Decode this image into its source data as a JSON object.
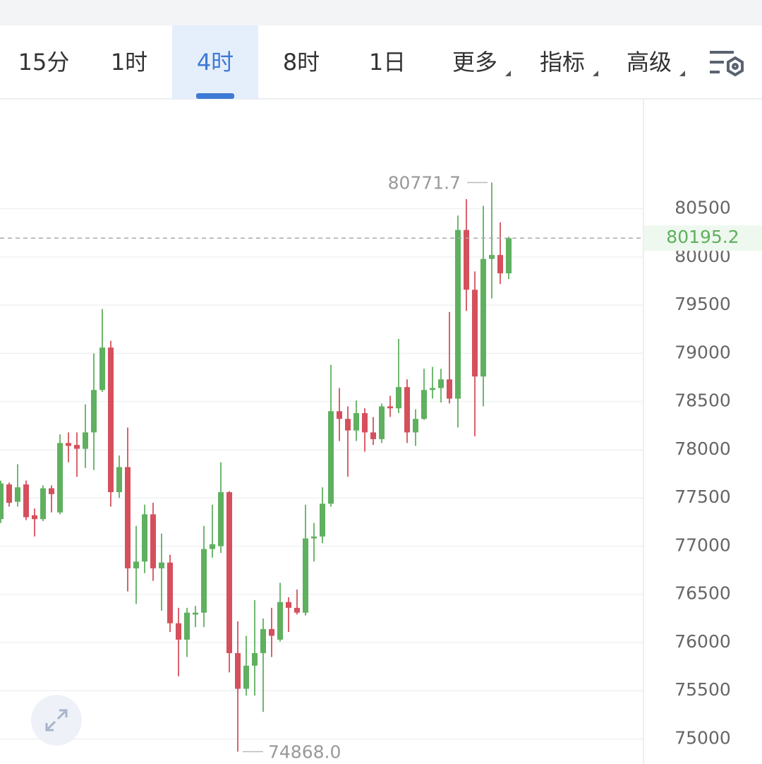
{
  "toolbar": {
    "tabs": [
      {
        "label": "15分"
      },
      {
        "label": "1时"
      },
      {
        "label": "4时",
        "active": true
      },
      {
        "label": "8时"
      },
      {
        "label": "1日"
      },
      {
        "label": "更多",
        "dropdown": true
      },
      {
        "label": "指标",
        "dropdown": true
      },
      {
        "label": "高级",
        "dropdown": true
      }
    ]
  },
  "chart_data": {
    "type": "candlestick",
    "up_color": "#5fb05f",
    "down_color": "#d5505c",
    "ylim": [
      74740,
      81640
    ],
    "yticks": [
      75000,
      75500,
      76000,
      76500,
      77000,
      77500,
      78000,
      78500,
      79000,
      79500,
      80000,
      80500
    ],
    "grid": true,
    "last_price": 80195.2,
    "high_label": 80771.7,
    "low_label": {
      "value": 74868,
      "label": "74868.0"
    },
    "open": [
      77280,
      77640,
      77460,
      77640,
      77320,
      77280,
      77600,
      77350,
      78070,
      78050,
      78010,
      78180,
      78620,
      79060,
      77560,
      77820,
      76770,
      76840,
      77330,
      76770,
      76830,
      76200,
      76030,
      76290,
      76310,
      76970,
      77000,
      77560,
      75890,
      75520,
      75760,
      75890,
      76140,
      76030,
      76420,
      76360,
      76310,
      77080,
      77100,
      77440,
      78400,
      78320,
      78200,
      78380,
      78180,
      78110,
      78450,
      78430,
      78650,
      78180,
      78320,
      78620,
      78640,
      78730,
      78530,
      80280,
      79660,
      78760,
      79980,
      80020,
      79830
    ],
    "high": [
      77680,
      77660,
      77850,
      77680,
      77390,
      77630,
      77630,
      78160,
      78180,
      78180,
      78470,
      79000,
      79460,
      79130,
      77940,
      78230,
      77210,
      77430,
      77450,
      77130,
      76910,
      76360,
      76360,
      76380,
      77210,
      77430,
      77870,
      77570,
      76220,
      76070,
      76440,
      76250,
      76360,
      76620,
      76470,
      76550,
      77430,
      77240,
      77610,
      78880,
      78640,
      78450,
      78510,
      78430,
      78340,
      78480,
      78560,
      79150,
      78730,
      78420,
      78840,
      78860,
      78840,
      79430,
      80430,
      80600,
      79850,
      80530,
      80771.7,
      80360,
      80210
    ],
    "low": [
      77240,
      77410,
      77410,
      77270,
      77100,
      77260,
      77350,
      77330,
      77870,
      77720,
      77810,
      77790,
      78600,
      77410,
      77500,
      76530,
      76400,
      76720,
      76640,
      76330,
      76110,
      75650,
      75850,
      76160,
      76160,
      76880,
      76930,
      75690,
      74868,
      75450,
      75450,
      75280,
      75850,
      76010,
      76110,
      76290,
      76280,
      76840,
      77030,
      77410,
      78090,
      77720,
      78090,
      77980,
      78050,
      78070,
      78340,
      78380,
      78070,
      78040,
      78310,
      78530,
      78490,
      78480,
      78230,
      79440,
      78140,
      78450,
      79570,
      79720,
      79770
    ],
    "close": [
      77650,
      77450,
      77610,
      77300,
      77280,
      77600,
      77540,
      78070,
      78040,
      78010,
      78180,
      78620,
      79060,
      77560,
      77820,
      76770,
      76840,
      77330,
      76770,
      76830,
      76200,
      76030,
      76310,
      76310,
      76970,
      77020,
      77560,
      75890,
      75520,
      75760,
      75890,
      76140,
      76070,
      76420,
      76360,
      76310,
      77080,
      77100,
      77440,
      78400,
      78320,
      78200,
      78380,
      78180,
      78110,
      78450,
      78430,
      78650,
      78180,
      78320,
      78620,
      78640,
      78730,
      78530,
      80280,
      79660,
      78760,
      79980,
      80020,
      79830,
      80195.2
    ]
  }
}
